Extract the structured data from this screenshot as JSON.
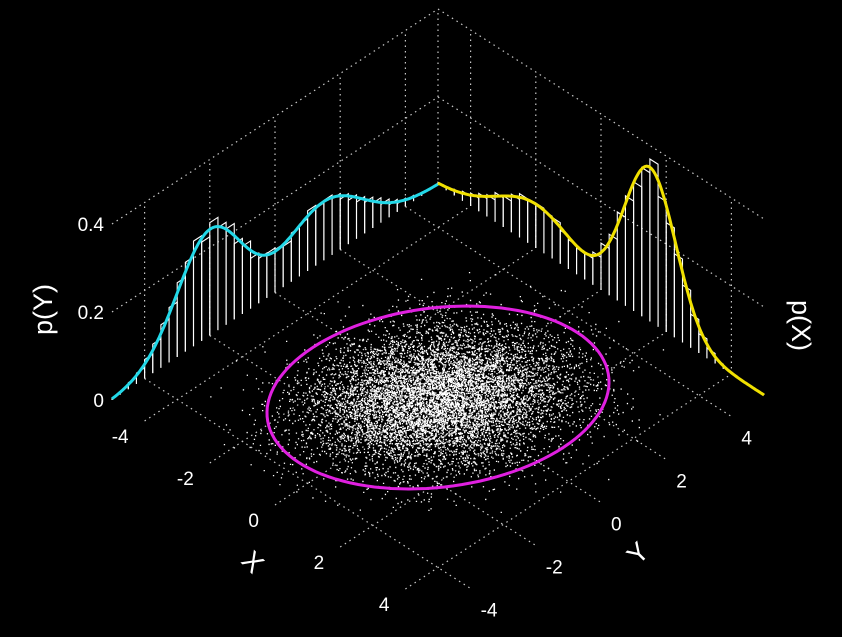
{
  "chart_data": {
    "type": "scatter",
    "title": "",
    "x_axis": {
      "label": "X",
      "range": [
        -5,
        5
      ],
      "ticks": [
        "-4",
        "-2",
        "0",
        "2",
        "4"
      ]
    },
    "y_axis": {
      "label": "Y",
      "range": [
        -5,
        5
      ],
      "ticks": [
        "-4",
        "-2",
        "0",
        "2",
        "4"
      ]
    },
    "z_axis": {
      "range": [
        0,
        0.4
      ],
      "ticks": [
        "0",
        "0.2",
        "0.4"
      ]
    },
    "marginal_pY": {
      "label": "p(Y)",
      "color": "#22d8e8",
      "mixture": [
        {
          "weight": 0.6,
          "mean": -2.0,
          "sd": 1.0
        },
        {
          "weight": 0.4,
          "mean": 1.5,
          "sd": 1.2
        }
      ]
    },
    "marginal_pX": {
      "label": "p(X)",
      "color": "#f0e000",
      "mixture": [
        {
          "weight": 0.3,
          "mean": -2.0,
          "sd": 1.2
        },
        {
          "weight": 0.7,
          "mean": 1.5,
          "sd": 0.8
        }
      ]
    },
    "joint_samples": {
      "count": 9000,
      "mean": [
        0.0,
        0.0
      ],
      "sd": [
        1.2,
        1.4
      ],
      "correlation": 0.2,
      "color": "#ffffff"
    },
    "confidence_ellipse": {
      "color": "#e020e0"
    },
    "grid": true
  }
}
